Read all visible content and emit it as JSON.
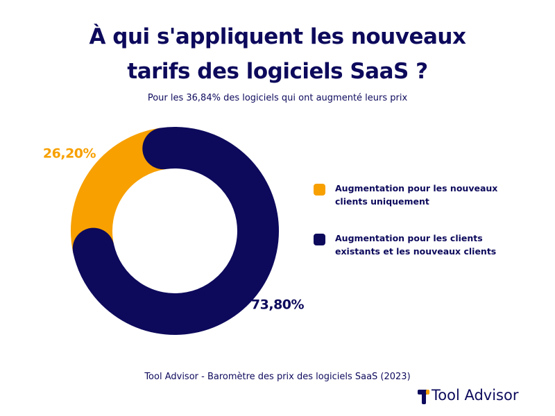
{
  "chart_data": {
    "type": "donut",
    "title": "À qui s'appliquent les nouveaux tarifs des logiciels SaaS ?",
    "subtitle": "Pour les 36,84% des logiciels qui ont augmenté leurs prix",
    "categories": [
      "Augmentation pour les nouveaux clients uniquement",
      "Augmentation pour les clients existants et les nouveaux clients"
    ],
    "values": [
      26.2,
      73.8
    ],
    "value_labels": [
      "26,20%",
      "73,80%"
    ],
    "colors": [
      "#f7a000",
      "#0d0a5c"
    ],
    "source": "Tool Advisor - Baromètre des prix des logiciels SaaS (2023)"
  },
  "branding": "Tool Advisor"
}
